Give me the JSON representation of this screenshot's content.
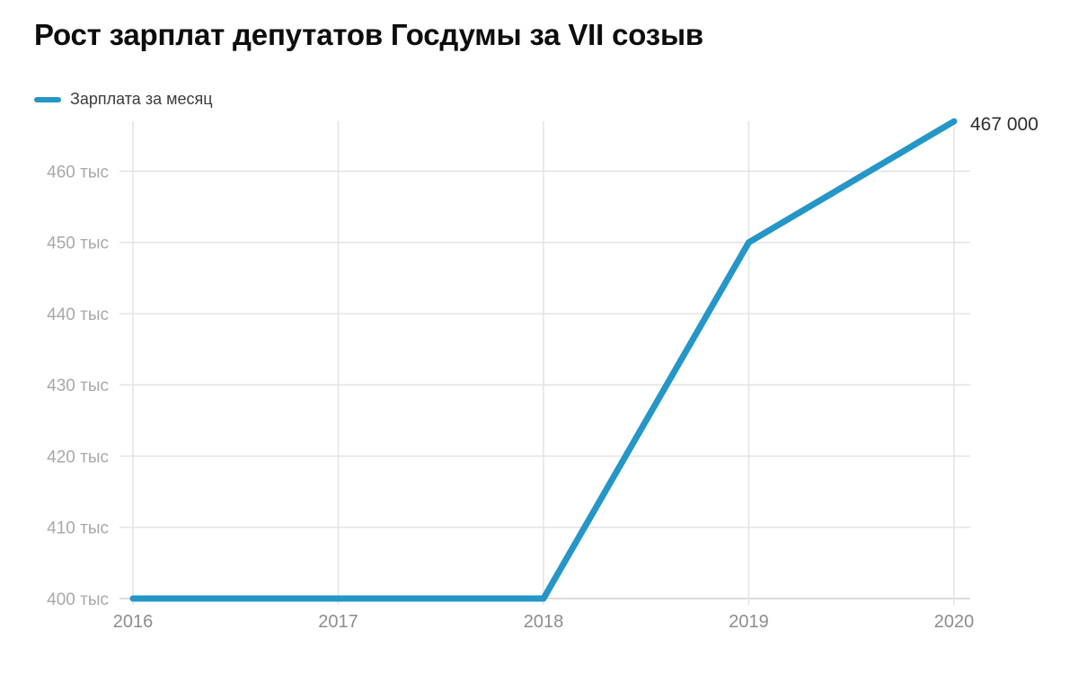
{
  "chart": {
    "title": "Рост зарплат депутатов Госдумы за VII созыв",
    "legend_label": "Зарплата за месяц",
    "end_label": "467 000"
  },
  "chart_data": {
    "type": "line",
    "title": "Рост зарплат депутатов Госдумы за VII созыв",
    "x": [
      2016,
      2017,
      2018,
      2019,
      2020
    ],
    "x_tick_labels": [
      "2016",
      "2017",
      "2018",
      "2019",
      "2020"
    ],
    "series": [
      {
        "name": "Зарплата за месяц",
        "values": [
          400000,
          400000,
          400000,
          450000,
          467000
        ]
      }
    ],
    "y_ticks": [
      {
        "value": 400000,
        "label": "400 тыс"
      },
      {
        "value": 410000,
        "label": "410 тыс"
      },
      {
        "value": 420000,
        "label": "420 тыс"
      },
      {
        "value": 430000,
        "label": "430 тыс"
      },
      {
        "value": 440000,
        "label": "440 тыс"
      },
      {
        "value": 450000,
        "label": "450 тыс"
      },
      {
        "value": 460000,
        "label": "460 тыс"
      }
    ],
    "xlim": [
      2016,
      2020
    ],
    "ylim": [
      400000,
      467000
    ],
    "grid": true,
    "legend_position": "top-left",
    "annotation": {
      "text": "467 000",
      "x": 2020,
      "y": 467000
    }
  },
  "colors": {
    "background": "#ffffff",
    "line": "#2496C7",
    "grid": "#e3e3e3",
    "axis_line": "#d2d2d2",
    "y_tick_text": "#a8a8a8",
    "x_tick_text": "#8d8d8d",
    "title_text": "#0d0d0d",
    "legend_text": "#3c3c3c",
    "end_label_text": "#2e2e2e"
  }
}
